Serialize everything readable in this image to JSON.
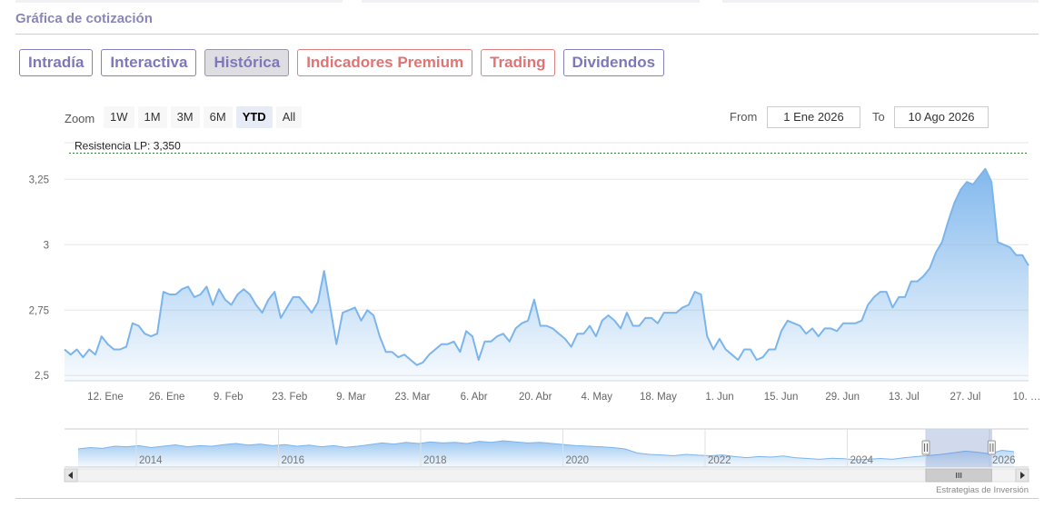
{
  "section_title": "Gráfica de cotización",
  "tabs": [
    {
      "label": "Intradía",
      "tone": "purple",
      "active": false
    },
    {
      "label": "Interactiva",
      "tone": "purple",
      "active": false
    },
    {
      "label": "Histórica",
      "tone": "purple",
      "active": true
    },
    {
      "label": "Indicadores Premium",
      "tone": "red",
      "active": false
    },
    {
      "label": "Trading",
      "tone": "red",
      "active": false
    },
    {
      "label": "Dividendos",
      "tone": "purple",
      "active": false
    }
  ],
  "zoom": {
    "label": "Zoom",
    "buttons": [
      "1W",
      "1M",
      "3M",
      "6M",
      "YTD",
      "All"
    ],
    "selected": "YTD"
  },
  "range": {
    "from_label": "From",
    "from_value": "1 Ene 2026",
    "to_label": "To",
    "to_value": "10 Ago 2026"
  },
  "credit": "Estrategias de Inversión",
  "colors": {
    "line": "#7cb5ec",
    "resistance": "#2e7d32",
    "purple": "#7d78bb",
    "red": "#e07474"
  },
  "chart_data": {
    "type": "area",
    "x_start": "2026-01-01",
    "x_end": "2026-08-10",
    "ylim": [
      2.48,
      3.39
    ],
    "y_ticks": [
      2.5,
      2.75,
      3,
      3.25
    ],
    "y_tick_labels": [
      "2,5",
      "2,75",
      "3",
      "3,25"
    ],
    "x_ticks": [
      {
        "date": "2026-01-12",
        "label": "12. Ene"
      },
      {
        "date": "2026-01-26",
        "label": "26. Ene"
      },
      {
        "date": "2026-02-09",
        "label": "9. Feb"
      },
      {
        "date": "2026-02-23",
        "label": "23. Feb"
      },
      {
        "date": "2026-03-09",
        "label": "9. Mar"
      },
      {
        "date": "2026-03-23",
        "label": "23. Mar"
      },
      {
        "date": "2026-04-06",
        "label": "6. Abr"
      },
      {
        "date": "2026-04-20",
        "label": "20. Abr"
      },
      {
        "date": "2026-05-04",
        "label": "4. May"
      },
      {
        "date": "2026-05-18",
        "label": "18. May"
      },
      {
        "date": "2026-06-01",
        "label": "1. Jun"
      },
      {
        "date": "2026-06-15",
        "label": "15. Jun"
      },
      {
        "date": "2026-06-29",
        "label": "29. Jun"
      },
      {
        "date": "2026-07-13",
        "label": "13. Jul"
      },
      {
        "date": "2026-07-27",
        "label": "27. Jul"
      },
      {
        "date": "2026-08-10",
        "label": "10. …"
      }
    ],
    "grid": true,
    "resistance": {
      "value": 3.35,
      "label": "Resistencia LP: 3,350"
    },
    "series": [
      {
        "points": [
          [
            "2026-01-01",
            2.6
          ],
          [
            "2026-01-02",
            2.58
          ],
          [
            "2026-01-03",
            2.6
          ],
          [
            "2026-01-04",
            2.57
          ],
          [
            "2026-01-05",
            2.6
          ],
          [
            "2026-01-06",
            2.58
          ],
          [
            "2026-01-07",
            2.65
          ],
          [
            "2026-01-08",
            2.62
          ],
          [
            "2026-01-09",
            2.6
          ],
          [
            "2026-01-10",
            2.6
          ],
          [
            "2026-01-11",
            2.61
          ],
          [
            "2026-01-12",
            2.7
          ],
          [
            "2026-01-13",
            2.69
          ],
          [
            "2026-01-14",
            2.66
          ],
          [
            "2026-01-15",
            2.65
          ],
          [
            "2026-01-16",
            2.66
          ],
          [
            "2026-01-17",
            2.82
          ],
          [
            "2026-01-18",
            2.81
          ],
          [
            "2026-01-19",
            2.81
          ],
          [
            "2026-01-20",
            2.83
          ],
          [
            "2026-01-21",
            2.84
          ],
          [
            "2026-01-22",
            2.8
          ],
          [
            "2026-01-23",
            2.81
          ],
          [
            "2026-01-24",
            2.84
          ],
          [
            "2026-01-25",
            2.77
          ],
          [
            "2026-01-26",
            2.83
          ],
          [
            "2026-01-27",
            2.79
          ],
          [
            "2026-01-28",
            2.77
          ],
          [
            "2026-01-29",
            2.81
          ],
          [
            "2026-01-30",
            2.83
          ],
          [
            "2026-01-31",
            2.81
          ],
          [
            "2026-02-01",
            2.77
          ],
          [
            "2026-02-02",
            2.74
          ],
          [
            "2026-02-03",
            2.79
          ],
          [
            "2026-02-04",
            2.82
          ],
          [
            "2026-02-05",
            2.72
          ],
          [
            "2026-02-06",
            2.76
          ],
          [
            "2026-02-07",
            2.8
          ],
          [
            "2026-02-08",
            2.8
          ],
          [
            "2026-02-09",
            2.77
          ],
          [
            "2026-02-10",
            2.74
          ],
          [
            "2026-02-11",
            2.78
          ],
          [
            "2026-02-12",
            2.9
          ],
          [
            "2026-02-13",
            2.76
          ],
          [
            "2026-02-14",
            2.62
          ],
          [
            "2026-02-15",
            2.74
          ],
          [
            "2026-02-16",
            2.75
          ],
          [
            "2026-02-17",
            2.76
          ],
          [
            "2026-02-18",
            2.71
          ],
          [
            "2026-02-19",
            2.75
          ],
          [
            "2026-02-20",
            2.73
          ],
          [
            "2026-02-21",
            2.65
          ],
          [
            "2026-02-22",
            2.59
          ],
          [
            "2026-02-23",
            2.59
          ],
          [
            "2026-02-24",
            2.57
          ],
          [
            "2026-02-25",
            2.58
          ],
          [
            "2026-02-26",
            2.56
          ],
          [
            "2026-02-27",
            2.54
          ],
          [
            "2026-02-28",
            2.55
          ],
          [
            "2026-03-01",
            2.58
          ],
          [
            "2026-03-02",
            2.6
          ],
          [
            "2026-03-03",
            2.62
          ],
          [
            "2026-03-04",
            2.62
          ],
          [
            "2026-03-05",
            2.63
          ],
          [
            "2026-03-06",
            2.59
          ],
          [
            "2026-03-07",
            2.67
          ],
          [
            "2026-03-08",
            2.65
          ],
          [
            "2026-03-09",
            2.56
          ],
          [
            "2026-03-10",
            2.63
          ],
          [
            "2026-03-11",
            2.63
          ],
          [
            "2026-03-12",
            2.65
          ],
          [
            "2026-03-13",
            2.66
          ],
          [
            "2026-03-14",
            2.63
          ],
          [
            "2026-03-15",
            2.68
          ],
          [
            "2026-03-16",
            2.7
          ],
          [
            "2026-03-17",
            2.71
          ],
          [
            "2026-03-18",
            2.79
          ],
          [
            "2026-03-19",
            2.69
          ],
          [
            "2026-03-20",
            2.69
          ],
          [
            "2026-03-21",
            2.68
          ],
          [
            "2026-03-22",
            2.66
          ],
          [
            "2026-03-23",
            2.64
          ],
          [
            "2026-03-24",
            2.61
          ],
          [
            "2026-03-25",
            2.66
          ],
          [
            "2026-03-26",
            2.66
          ],
          [
            "2026-03-27",
            2.69
          ],
          [
            "2026-03-28",
            2.65
          ],
          [
            "2026-03-29",
            2.71
          ],
          [
            "2026-03-30",
            2.73
          ],
          [
            "2026-03-31",
            2.71
          ],
          [
            "2026-04-01",
            2.68
          ],
          [
            "2026-04-02",
            2.74
          ],
          [
            "2026-04-03",
            2.69
          ],
          [
            "2026-04-04",
            2.69
          ],
          [
            "2026-04-05",
            2.72
          ],
          [
            "2026-04-06",
            2.72
          ],
          [
            "2026-04-07",
            2.7
          ],
          [
            "2026-04-08",
            2.74
          ],
          [
            "2026-04-09",
            2.74
          ],
          [
            "2026-04-10",
            2.74
          ],
          [
            "2026-04-11",
            2.76
          ],
          [
            "2026-04-12",
            2.77
          ],
          [
            "2026-04-13",
            2.82
          ],
          [
            "2026-04-14",
            2.81
          ],
          [
            "2026-04-15",
            2.65
          ],
          [
            "2026-04-16",
            2.6
          ],
          [
            "2026-04-17",
            2.64
          ],
          [
            "2026-04-18",
            2.6
          ],
          [
            "2026-04-19",
            2.58
          ],
          [
            "2026-04-20",
            2.56
          ],
          [
            "2026-04-21",
            2.6
          ],
          [
            "2026-04-22",
            2.6
          ],
          [
            "2026-04-23",
            2.56
          ],
          [
            "2026-04-24",
            2.57
          ],
          [
            "2026-04-25",
            2.6
          ],
          [
            "2026-04-26",
            2.6
          ],
          [
            "2026-04-27",
            2.67
          ],
          [
            "2026-04-28",
            2.71
          ],
          [
            "2026-04-29",
            2.7
          ],
          [
            "2026-04-30",
            2.69
          ],
          [
            "2026-05-01",
            2.66
          ],
          [
            "2026-05-02",
            2.68
          ],
          [
            "2026-05-03",
            2.65
          ],
          [
            "2026-05-04",
            2.68
          ],
          [
            "2026-05-05",
            2.68
          ],
          [
            "2026-05-06",
            2.67
          ],
          [
            "2026-05-07",
            2.7
          ],
          [
            "2026-05-08",
            2.7
          ],
          [
            "2026-05-09",
            2.7
          ],
          [
            "2026-05-10",
            2.71
          ],
          [
            "2026-05-11",
            2.77
          ],
          [
            "2026-05-12",
            2.8
          ],
          [
            "2026-05-13",
            2.82
          ],
          [
            "2026-05-14",
            2.82
          ],
          [
            "2026-05-15",
            2.76
          ],
          [
            "2026-05-16",
            2.8
          ],
          [
            "2026-05-17",
            2.8
          ],
          [
            "2026-05-18",
            2.86
          ],
          [
            "2026-05-19",
            2.86
          ],
          [
            "2026-05-20",
            2.88
          ],
          [
            "2026-05-21",
            2.91
          ],
          [
            "2026-05-22",
            2.97
          ],
          [
            "2026-05-23",
            3.01
          ],
          [
            "2026-05-24",
            3.09
          ],
          [
            "2026-05-25",
            3.16
          ],
          [
            "2026-05-26",
            3.21
          ],
          [
            "2026-05-27",
            3.24
          ],
          [
            "2026-05-28",
            3.23
          ],
          [
            "2026-05-29",
            3.26
          ],
          [
            "2026-05-30",
            3.29
          ],
          [
            "2026-05-31",
            3.24
          ],
          [
            "2026-06-01",
            3.01
          ],
          [
            "2026-06-02",
            3.0
          ],
          [
            "2026-06-03",
            2.99
          ],
          [
            "2026-06-04",
            2.96
          ],
          [
            "2026-06-05",
            2.96
          ],
          [
            "2026-06-06",
            2.92
          ]
        ]
      }
    ]
  },
  "navigator": {
    "year_labels": [
      "2014",
      "2016",
      "2018",
      "2020",
      "2022",
      "2024",
      "2026"
    ],
    "values": [
      0.5,
      0.55,
      0.52,
      0.6,
      0.58,
      0.62,
      0.55,
      0.6,
      0.65,
      0.58,
      0.62,
      0.6,
      0.66,
      0.7,
      0.64,
      0.68,
      0.62,
      0.66,
      0.6,
      0.64,
      0.58,
      0.62,
      0.56,
      0.6,
      0.66,
      0.72,
      0.68,
      0.74,
      0.7,
      0.76,
      0.72,
      0.74,
      0.7,
      0.78,
      0.74,
      0.8,
      0.76,
      0.72,
      0.74,
      0.7,
      0.66,
      0.62,
      0.6,
      0.58,
      0.55,
      0.5,
      0.35,
      0.3,
      0.28,
      0.25,
      0.3,
      0.27,
      0.25,
      0.28,
      0.22,
      0.18,
      0.22,
      0.2,
      0.24,
      0.18,
      0.15,
      0.12,
      0.16,
      0.14,
      0.1,
      0.12,
      0.15,
      0.12,
      0.18,
      0.22,
      0.26,
      0.3,
      0.36,
      0.42,
      0.38,
      0.32,
      0.45,
      0.4
    ],
    "selection_start": 0.8935,
    "selection_end": 0.9617
  }
}
